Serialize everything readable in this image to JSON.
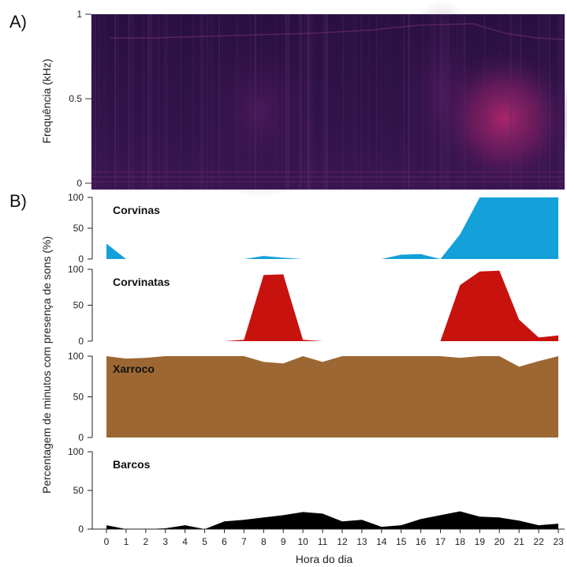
{
  "panel_a": {
    "label": "A)",
    "ylabel": "Frequência (kHz)",
    "yticks": [
      "1",
      "0.5",
      "0"
    ],
    "colors": {
      "bg": "#1e0f33",
      "mid": "#3a1553",
      "hot": "#b42a6a",
      "line": "#7d2a73"
    }
  },
  "panel_b": {
    "label": "B)",
    "ylabel": "Percentagem de minutos com presença de sons (%)"
  },
  "chart_data": [
    {
      "type": "heatmap",
      "title": "",
      "ylabel": "Frequência (kHz)",
      "ylim": [
        0,
        1
      ],
      "yticks": [
        1,
        0.5,
        0
      ],
      "description": "spectrogram"
    },
    {
      "type": "area",
      "title": "Corvinas",
      "color": "#14a0d8",
      "ylim": [
        0,
        100
      ],
      "yticks": [
        100,
        50,
        0
      ],
      "x": [
        0,
        1,
        2,
        3,
        4,
        5,
        6,
        7,
        8,
        9,
        10,
        11,
        12,
        13,
        14,
        15,
        16,
        17,
        18,
        19,
        20,
        21,
        22,
        23
      ],
      "values": [
        25,
        0,
        0,
        0,
        0,
        0,
        0,
        0,
        5,
        2,
        0,
        0,
        0,
        0,
        0,
        7,
        8,
        0,
        40,
        100,
        100,
        100,
        100,
        100
      ]
    },
    {
      "type": "area",
      "title": "Corvinatas",
      "color": "#c8120e",
      "ylim": [
        0,
        100
      ],
      "yticks": [
        100,
        50,
        0
      ],
      "x": [
        0,
        1,
        2,
        3,
        4,
        5,
        6,
        7,
        8,
        9,
        10,
        11,
        12,
        13,
        14,
        15,
        16,
        17,
        18,
        19,
        20,
        21,
        22,
        23
      ],
      "values": [
        0,
        0,
        0,
        0,
        0,
        0,
        0,
        2,
        92,
        93,
        2,
        0,
        0,
        0,
        0,
        0,
        0,
        0,
        78,
        97,
        98,
        30,
        5,
        8
      ]
    },
    {
      "type": "area",
      "title": "Xarroco",
      "color": "#9d6733",
      "ylim": [
        0,
        100
      ],
      "yticks": [
        100,
        50,
        0
      ],
      "x": [
        0,
        1,
        2,
        3,
        4,
        5,
        6,
        7,
        8,
        9,
        10,
        11,
        12,
        13,
        14,
        15,
        16,
        17,
        18,
        19,
        20,
        21,
        22,
        23
      ],
      "values": [
        100,
        97,
        98,
        100,
        100,
        100,
        100,
        100,
        93,
        91,
        100,
        93,
        100,
        100,
        100,
        100,
        100,
        100,
        98,
        100,
        100,
        87,
        94,
        100
      ]
    },
    {
      "type": "area",
      "title": "Barcos",
      "color": "#000000",
      "ylim": [
        0,
        100
      ],
      "yticks": [
        100,
        50,
        0
      ],
      "xlabel": "Hora do dia",
      "x": [
        0,
        1,
        2,
        3,
        4,
        5,
        6,
        7,
        8,
        9,
        10,
        11,
        12,
        13,
        14,
        15,
        16,
        17,
        18,
        19,
        20,
        21,
        22,
        23
      ],
      "values": [
        5,
        0,
        0,
        1,
        5,
        0,
        10,
        12,
        15,
        18,
        22,
        20,
        10,
        12,
        3,
        5,
        13,
        18,
        23,
        16,
        15,
        11,
        5,
        7
      ]
    }
  ]
}
